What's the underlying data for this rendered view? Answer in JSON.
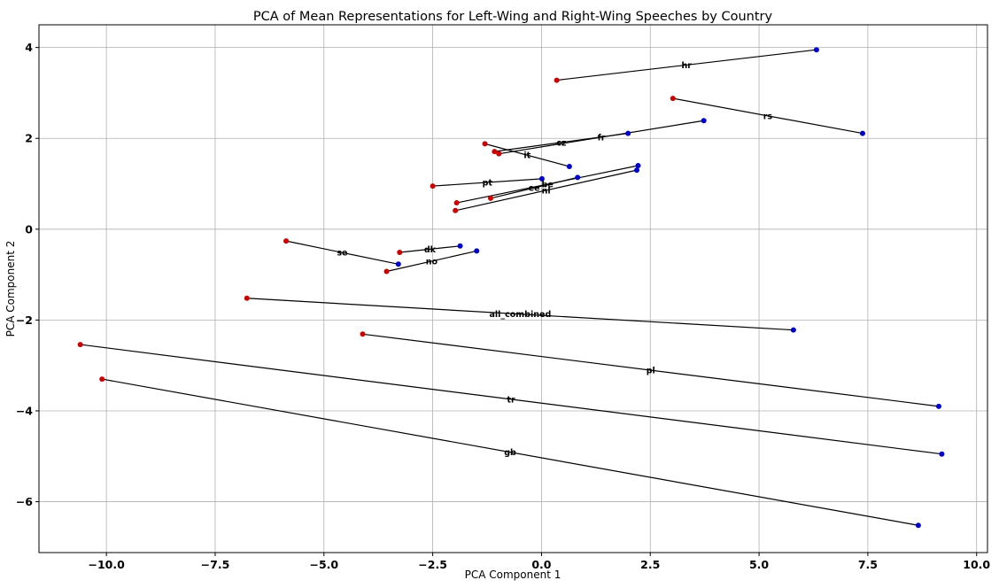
{
  "chart_data": {
    "type": "scatter",
    "title": "PCA of Mean Representations for Left-Wing and Right-Wing Speeches by Country",
    "xlabel": "PCA Component 1",
    "ylabel": "PCA Component 2",
    "xlim": [
      -11.55,
      10.25
    ],
    "ylim": [
      -7.12,
      4.5
    ],
    "xticks": [
      -10.0,
      -7.5,
      -5.0,
      -2.5,
      0.0,
      2.5,
      5.0,
      7.5,
      10.0
    ],
    "xtick_labels": [
      "−10.0",
      "−7.5",
      "−5.0",
      "−2.5",
      "0.0",
      "2.5",
      "5.0",
      "7.5",
      "10.0"
    ],
    "yticks": [
      -6,
      -4,
      -2,
      0,
      2,
      4
    ],
    "ytick_labels": [
      "−6",
      "−4",
      "−2",
      "0",
      "2",
      "4"
    ],
    "grid": true,
    "colors": {
      "left": "#cc0000",
      "right": "#0000cc",
      "line": "#000000"
    },
    "pairs": [
      {
        "label": "hr",
        "left": [
          0.35,
          3.28
        ],
        "right": [
          6.32,
          3.95
        ]
      },
      {
        "label": "rs",
        "left": [
          3.02,
          2.88
        ],
        "right": [
          7.38,
          2.11
        ]
      },
      {
        "label": "fr",
        "left": [
          -0.98,
          1.66
        ],
        "right": [
          3.73,
          2.39
        ]
      },
      {
        "label": "cz",
        "left": [
          -1.08,
          1.71
        ],
        "right": [
          1.99,
          2.11
        ]
      },
      {
        "label": "it",
        "left": [
          -1.3,
          1.88
        ],
        "right": [
          0.64,
          1.38
        ]
      },
      {
        "label": "pt",
        "left": [
          -2.5,
          0.95
        ],
        "right": [
          0.01,
          1.11
        ]
      },
      {
        "label": "be",
        "left": [
          -1.95,
          0.58
        ],
        "right": [
          2.22,
          1.4
        ]
      },
      {
        "label": "ee",
        "left": [
          -1.17,
          0.68
        ],
        "right": [
          0.83,
          1.14
        ]
      },
      {
        "label": "nl",
        "left": [
          -1.98,
          0.41
        ],
        "right": [
          2.19,
          1.3
        ]
      },
      {
        "label": "se",
        "left": [
          -5.87,
          -0.26
        ],
        "right": [
          -3.29,
          -0.77
        ]
      },
      {
        "label": "dk",
        "left": [
          -3.26,
          -0.51
        ],
        "right": [
          -1.87,
          -0.37
        ]
      },
      {
        "label": "no",
        "left": [
          -3.56,
          -0.93
        ],
        "right": [
          -1.49,
          -0.48
        ]
      },
      {
        "label": "all_combined",
        "left": [
          -6.77,
          -1.52
        ],
        "right": [
          5.79,
          -2.22
        ]
      },
      {
        "label": "pl",
        "left": [
          -4.11,
          -2.31
        ],
        "right": [
          9.13,
          -3.9
        ]
      },
      {
        "label": "tr",
        "left": [
          -10.6,
          -2.54
        ],
        "right": [
          9.2,
          -4.95
        ]
      },
      {
        "label": "gb",
        "left": [
          -10.1,
          -3.3
        ],
        "right": [
          8.66,
          -6.52
        ]
      }
    ]
  }
}
